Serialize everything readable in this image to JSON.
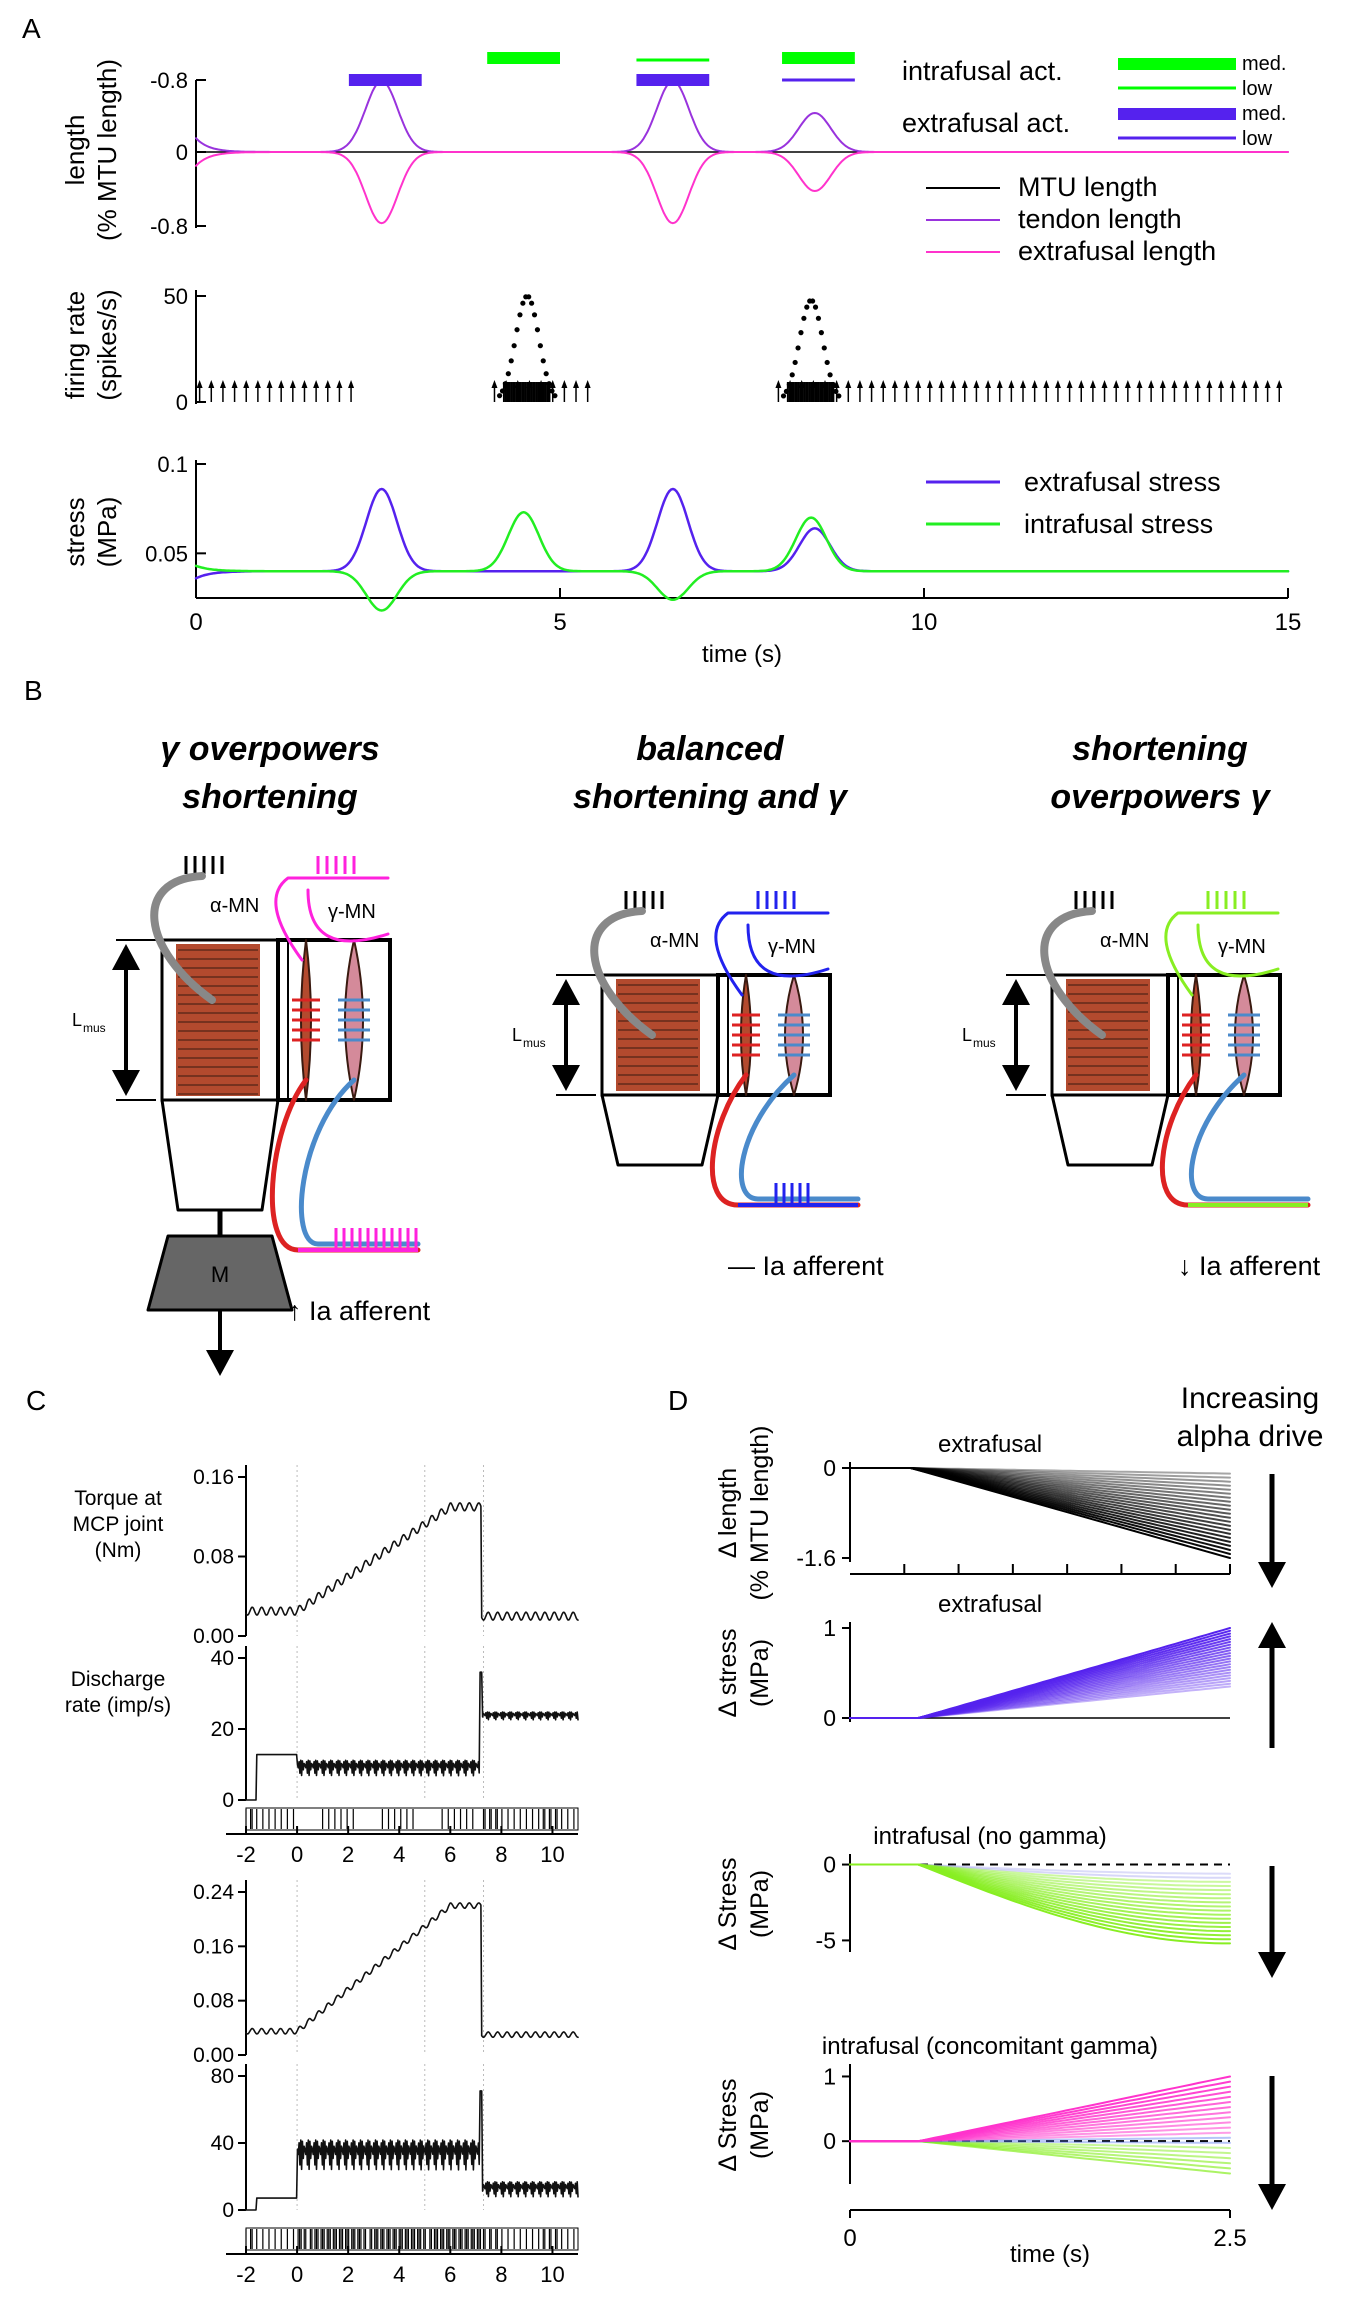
{
  "chart_data": [
    {
      "panel_label": "A",
      "type": "line",
      "sub_panels": [
        {
          "id": "length",
          "ylabel": [
            "length",
            "(% MTU length)"
          ],
          "yticks": [
            "-0.8",
            "0",
            "-0.8"
          ],
          "legend": [
            "MTU length",
            "tendon length",
            "extrafusal length"
          ],
          "activation_legend": {
            "intrafusal_label": "intrafusal act.",
            "extrafusal_label": "extrafusal act.",
            "levels": [
              "med.",
              "low"
            ],
            "intrafusal_color": "#00ff00",
            "extrafusal_color": "#5522ee"
          },
          "bars": [
            {
              "series": "extrafusal",
              "level": "med.",
              "t0": 2.1,
              "t1": 3.1
            },
            {
              "series": "intrafusal",
              "level": "med.",
              "t0": 4.0,
              "t1": 5.0
            },
            {
              "series": "intrafusal",
              "level": "low",
              "t0": 6.05,
              "t1": 7.05
            },
            {
              "series": "extrafusal",
              "level": "med.",
              "t0": 6.05,
              "t1": 7.05
            },
            {
              "series": "intrafusal",
              "level": "med.",
              "t0": 8.05,
              "t1": 9.05
            },
            {
              "series": "extrafusal",
              "level": "low",
              "t0": 8.05,
              "t1": 9.05
            }
          ],
          "pulses": [
            {
              "t": 2.55,
              "tendon": 0.62,
              "extrafusal": -0.62
            },
            {
              "t": 6.55,
              "tendon": 0.62,
              "extrafusal": -0.62
            },
            {
              "t": 8.5,
              "tendon": 0.34,
              "extrafusal": -0.34
            }
          ],
          "colors": {
            "mtu": "#000000",
            "tendon": "#9933dd",
            "extrafusal": "#ff33cc"
          }
        },
        {
          "id": "firing",
          "ylabel": [
            "firing rate",
            "(spikes/s)"
          ],
          "yticks": [
            "50",
            "0"
          ],
          "bursts": [
            {
              "t": 4.55,
              "peak": 50
            },
            {
              "t": 8.45,
              "peak": 48
            }
          ],
          "spike_segments": [
            [
              0.05,
              2.25
            ],
            [
              4.1,
              5.4
            ],
            [
              8.0,
              15
            ]
          ]
        },
        {
          "id": "stress",
          "ylabel": [
            "stress",
            "(MPa)"
          ],
          "yticks": [
            "0.1",
            "0.05"
          ],
          "ylim": [
            0.025,
            0.1
          ],
          "xlabel": "time (s)",
          "xticks": [
            "0",
            "5",
            "10",
            "15"
          ],
          "xlim": [
            0,
            15
          ],
          "series": [
            {
              "name": "extrafusal stress",
              "color": "#5522ee",
              "baseline": 0.04,
              "pulses": [
                {
                  "t": 2.55,
                  "amp": 0.046
                },
                {
                  "t": 6.55,
                  "amp": 0.046
                },
                {
                  "t": 8.5,
                  "amp": 0.024
                }
              ]
            },
            {
              "name": "intrafusal stress",
              "color": "#22ee22",
              "baseline": 0.04,
              "pulses": [
                {
                  "t": 2.55,
                  "amp": -0.022
                },
                {
                  "t": 4.5,
                  "amp": 0.033
                },
                {
                  "t": 6.55,
                  "amp": -0.016
                },
                {
                  "t": 8.45,
                  "amp": 0.03
                }
              ]
            }
          ]
        }
      ]
    },
    {
      "panel_label": "D",
      "type": "line",
      "annotation": [
        "Increasing",
        "alpha drive"
      ],
      "xlabel": "time (s)",
      "xticks": [
        "0",
        "2.5"
      ],
      "xlim": [
        0,
        2.5
      ],
      "sub_panels": [
        {
          "title": "extrafusal",
          "ylabel": [
            "Δ length",
            "(% MTU length)"
          ],
          "yticks": [
            "0",
            "-1.6"
          ],
          "ylim": [
            -1.6,
            0
          ],
          "n_lines": 22,
          "onset": 0.4,
          "end_min": -0.1,
          "end_max": -1.6,
          "color": "#000000",
          "arrow": "down"
        },
        {
          "title": "extrafusal",
          "ylabel": [
            "Δ stress",
            "(MPa)"
          ],
          "yticks": [
            "1",
            "0"
          ],
          "ylim": [
            0,
            1
          ],
          "n_lines": 22,
          "onset": 0.45,
          "end_min": 0.35,
          "end_max": 1.0,
          "color": "#5522ee",
          "arrow": "up"
        },
        {
          "title": "intrafusal (no gamma)",
          "ylabel": [
            "Δ Stress",
            "(MPa)"
          ],
          "yticks": [
            "0",
            "-5"
          ],
          "ylim": [
            -5.5,
            0.3
          ],
          "n_lines": 18,
          "onset": 0.45,
          "end_min": -0.6,
          "end_max": -5.2,
          "color": "#88ee22",
          "arrow": "down"
        },
        {
          "title": "intrafusal (concomitant gamma)",
          "ylabel": [
            "Δ Stress",
            "(MPa)"
          ],
          "yticks": [
            "1",
            "0"
          ],
          "ylim": [
            -0.6,
            1.1
          ],
          "n_lines": 20,
          "onset": 0.45,
          "end_min": -0.5,
          "end_max": 1.0,
          "color": "#ff33cc",
          "arrow": "down"
        }
      ]
    },
    {
      "panel_label": "C",
      "type": "line",
      "sub_panels": [
        {
          "ylabel": [
            "Torque at",
            "MCP joint",
            "(Nm)"
          ],
          "yticks": [
            "0.16",
            "0.08",
            "0.00"
          ],
          "ylim": [
            0,
            0.16
          ]
        },
        {
          "ylabel": [
            "Discharge",
            "rate (imp/s)"
          ],
          "yticks": [
            "40",
            "20",
            "0"
          ],
          "ylim": [
            0,
            50
          ],
          "xticks": [
            "-2",
            "0",
            "2",
            "4",
            "6",
            "8",
            "10"
          ]
        },
        {
          "ylabel": [],
          "yticks": [
            "0.24",
            "0.16",
            "0.08",
            "0.00"
          ],
          "ylim": [
            0,
            0.24
          ]
        },
        {
          "ylabel": [],
          "yticks": [
            "80",
            "40",
            "0"
          ],
          "ylim": [
            0,
            90
          ],
          "xticks": [
            "-2",
            "0",
            "2",
            "4",
            "6",
            "8",
            "10"
          ]
        }
      ]
    }
  ],
  "panel_b": {
    "panel_label": "B",
    "columns": [
      {
        "title": [
          "γ overpowers",
          "shortening"
        ],
        "color": "#ff22dd",
        "afferent": "↑ Ia afferent",
        "load_label": "M"
      },
      {
        "title": [
          "balanced",
          "shortening and γ"
        ],
        "color": "#2222ee",
        "afferent": "— Ia afferent"
      },
      {
        "title": [
          "shortening",
          "overpowers γ"
        ],
        "color": "#88ee22",
        "afferent": "↓ Ia afferent"
      }
    ],
    "alpha_mn": "α-MN",
    "gamma_mn": "γ-MN",
    "lmus": "L",
    "lmus_sub": "mus"
  }
}
